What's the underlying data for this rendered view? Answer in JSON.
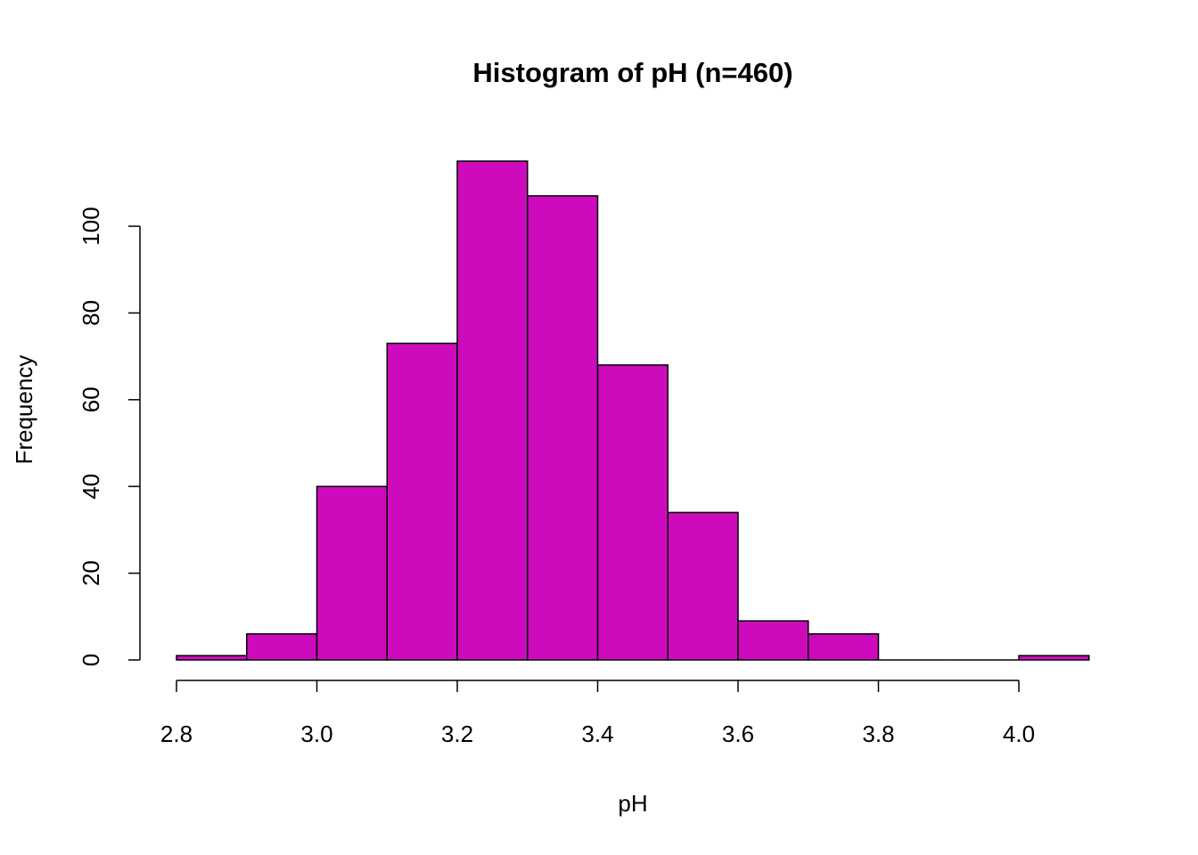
{
  "chart_data": {
    "type": "bar",
    "title": "Histogram of pH (n=460)",
    "xlabel": "pH",
    "ylabel": "Frequency",
    "bin_edges": [
      2.8,
      2.9,
      3.0,
      3.1,
      3.2,
      3.3,
      3.4,
      3.5,
      3.6,
      3.7,
      3.8,
      3.9,
      4.0,
      4.1
    ],
    "values": [
      1,
      6,
      40,
      73,
      115,
      107,
      68,
      34,
      9,
      6,
      0,
      0,
      1
    ],
    "xticks": [
      2.8,
      3.0,
      3.2,
      3.4,
      3.6,
      3.8,
      4.0
    ],
    "xtick_labels": [
      "2.8",
      "3.0",
      "3.2",
      "3.4",
      "3.6",
      "3.8",
      "4.0"
    ],
    "yticks": [
      0,
      20,
      40,
      60,
      80,
      100
    ],
    "ytick_labels": [
      "0",
      "20",
      "40",
      "60",
      "80",
      "100"
    ],
    "bar_color": "#CD0BBC",
    "grid": false
  }
}
